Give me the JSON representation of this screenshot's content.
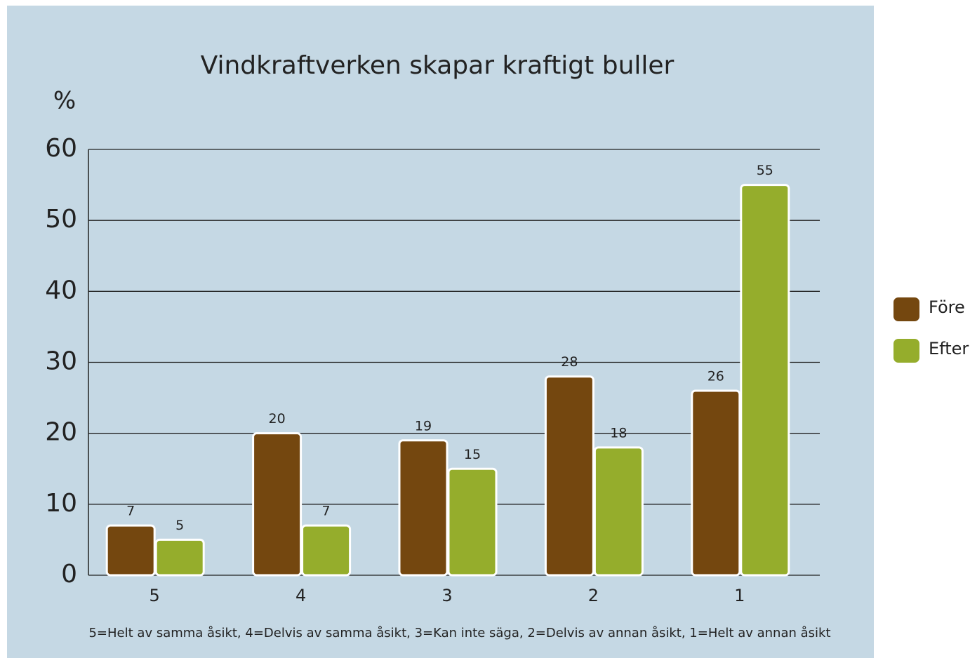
{
  "chart_data": {
    "type": "bar",
    "title": "Vindkraftverken skapar kraftigt buller",
    "y_label": "%",
    "categories": [
      "5",
      "4",
      "3",
      "2",
      "1"
    ],
    "series": [
      {
        "name": "Före",
        "color": "#74470f",
        "values": [
          7,
          20,
          19,
          28,
          26
        ]
      },
      {
        "name": "Efter",
        "color": "#95ad2c",
        "values": [
          5,
          7,
          15,
          18,
          55
        ]
      }
    ],
    "ylim": [
      0,
      60
    ],
    "yticks": [
      0,
      10,
      20,
      30,
      40,
      50,
      60
    ],
    "grid": true,
    "legend": "right",
    "note": "5=Helt av samma åsikt, 4=Delvis av samma åsikt, 3=Kan inte säga, 2=Delvis av annan åsikt, 1=Helt av annan åsikt"
  }
}
